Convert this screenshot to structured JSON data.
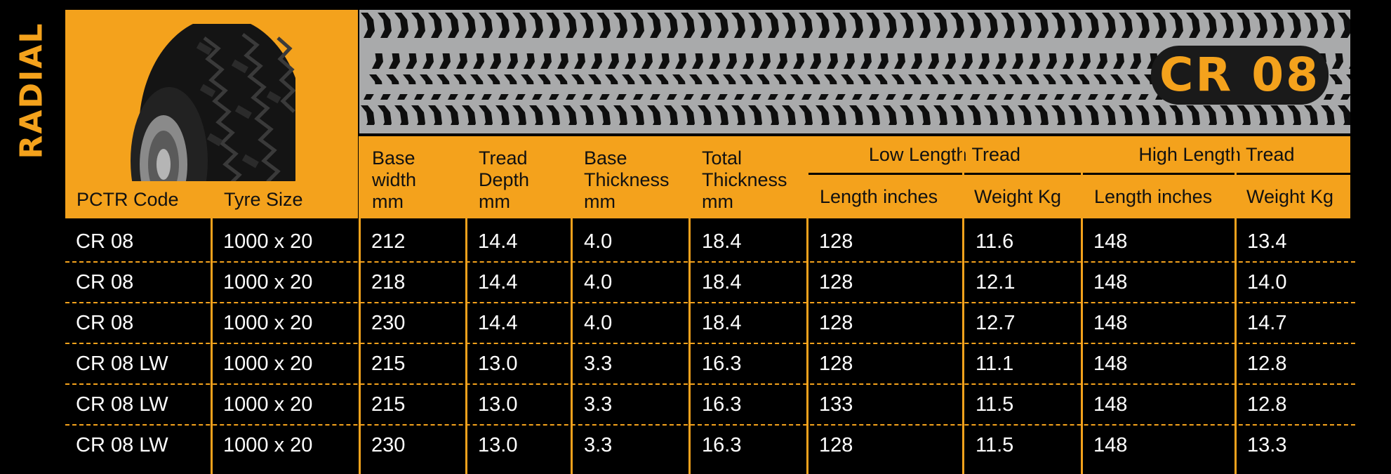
{
  "side_label": "RADIAL",
  "model_badge": "CR 08",
  "headers": {
    "pctr_code": "PCTR Code",
    "tyre_size": "Tyre Size",
    "base_width": [
      "Base",
      "width",
      "mm"
    ],
    "tread_depth": [
      "Tread",
      "Depth",
      "mm"
    ],
    "base_thickness": [
      "Base",
      "Thickness",
      "mm"
    ],
    "total_thickness": [
      "Total",
      "Thickness",
      "mm"
    ],
    "low_length_tread": "Low Length Tread",
    "high_length_tread": "High Length Tread",
    "length_inches": "Length inches",
    "weight_kg": "Weight Kg"
  },
  "rows": [
    [
      "CR 08",
      "1000 x 20",
      "212",
      "14.4",
      "4.0",
      "18.4",
      "128",
      "11.6",
      "148",
      "13.4"
    ],
    [
      "CR 08",
      "1000 x 20",
      "218",
      "14.4",
      "4.0",
      "18.4",
      "128",
      "12.1",
      "148",
      "14.0"
    ],
    [
      "CR 08",
      "1000 x 20",
      "230",
      "14.4",
      "4.0",
      "18.4",
      "128",
      "12.7",
      "148",
      "14.7"
    ],
    [
      "CR 08 LW",
      "1000 x 20",
      "215",
      "13.0",
      "3.3",
      "16.3",
      "128",
      "11.1",
      "148",
      "12.8"
    ],
    [
      "CR 08 LW",
      "1000 x 20",
      "215",
      "13.0",
      "3.3",
      "16.3",
      "133",
      "11.5",
      "148",
      "12.8"
    ],
    [
      "CR 08 LW",
      "1000 x 20",
      "230",
      "13.0",
      "3.3",
      "16.3",
      "128",
      "11.5",
      "148",
      "13.3"
    ]
  ],
  "colors": {
    "accent": "#f4a21c",
    "background": "#000000",
    "tread": "#a9aaab"
  }
}
